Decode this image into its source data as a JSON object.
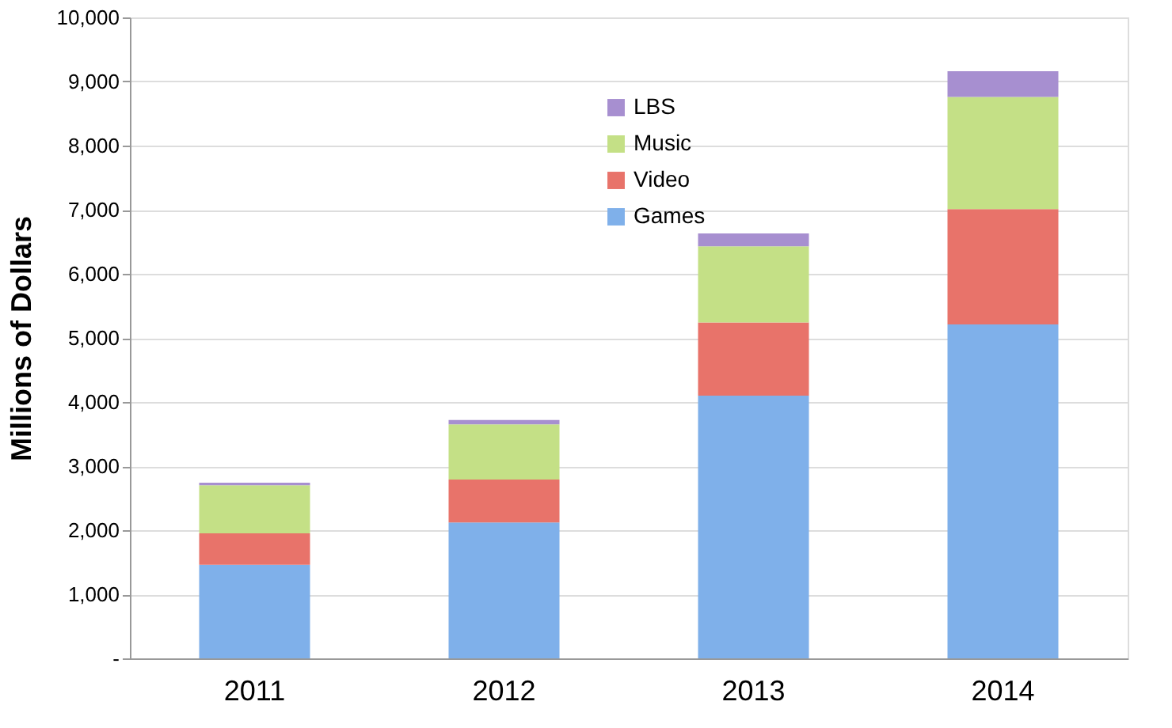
{
  "chart_data": {
    "type": "bar",
    "stacked": true,
    "ylabel": "Millions of Dollars",
    "categories": [
      "2011",
      "2012",
      "2013",
      "2014"
    ],
    "series": [
      {
        "name": "Games",
        "color": "#7fb0ea",
        "values": [
          1460,
          2120,
          4100,
          5210
        ]
      },
      {
        "name": "Video",
        "color": "#e8736a",
        "values": [
          490,
          670,
          1140,
          1800
        ]
      },
      {
        "name": "Music",
        "color": "#c4e086",
        "values": [
          750,
          860,
          1190,
          1750
        ]
      },
      {
        "name": "LBS",
        "color": "#a78fd0",
        "values": [
          40,
          70,
          200,
          400
        ]
      }
    ],
    "ylim": [
      0,
      10000
    ],
    "yticks": [
      {
        "value": 0,
        "label": "-"
      },
      {
        "value": 1000,
        "label": "1,000"
      },
      {
        "value": 2000,
        "label": "2,000"
      },
      {
        "value": 3000,
        "label": "3,000"
      },
      {
        "value": 4000,
        "label": "4,000"
      },
      {
        "value": 5000,
        "label": "5,000"
      },
      {
        "value": 6000,
        "label": "6,000"
      },
      {
        "value": 7000,
        "label": "7,000"
      },
      {
        "value": 8000,
        "label": "8,000"
      },
      {
        "value": 9000,
        "label": "9,000"
      },
      {
        "value": 10000,
        "label": "10,000"
      }
    ],
    "grid": "y",
    "legend": "top"
  }
}
